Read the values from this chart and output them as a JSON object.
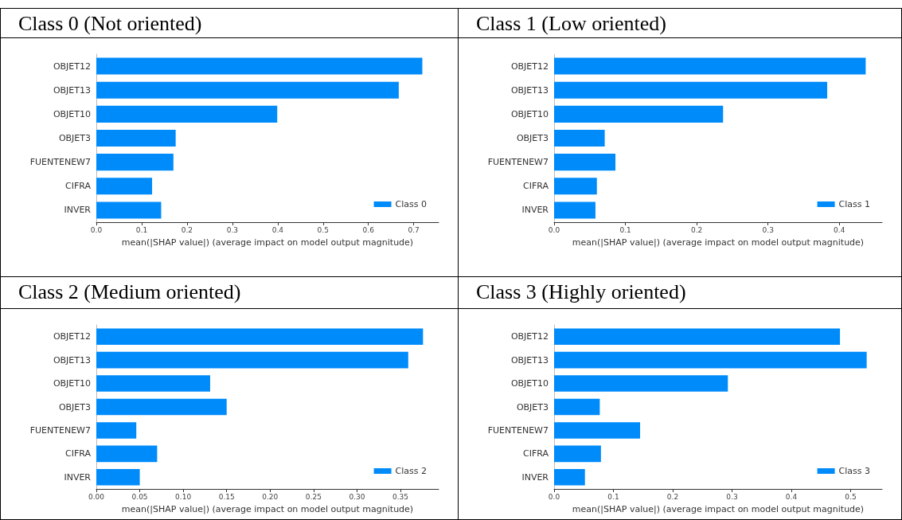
{
  "chart_data": [
    {
      "type": "bar",
      "orientation": "horizontal",
      "title": "Class 0 (Not oriented)",
      "xlabel": "mean(|SHAP value|) (average impact on model output magnitude)",
      "categories": [
        "OBJET12",
        "OBJET13",
        "OBJET10",
        "OBJET3",
        "FUENTENEW7",
        "CIFRA",
        "INVER"
      ],
      "series": [
        {
          "name": "Class 0",
          "color": "#008bfb",
          "values": [
            0.719,
            0.667,
            0.399,
            0.175,
            0.17,
            0.123,
            0.143
          ]
        }
      ],
      "xlim": [
        0,
        0.755
      ],
      "xticks": [
        {
          "value": 0,
          "label": "0.0"
        },
        0.1,
        0.2,
        0.3,
        0.4,
        0.5,
        0.6,
        0.7
      ],
      "legend": "bottom right",
      "grid": false
    },
    {
      "type": "bar",
      "orientation": "horizontal",
      "title": "Class 1 (Low oriented)",
      "xlabel": "mean(|SHAP value|) (average impact on model output magnitude)",
      "categories": [
        "OBJET12",
        "OBJET13",
        "OBJET10",
        "OBJET3",
        "FUENTENEW7",
        "CIFRA",
        "INVER"
      ],
      "series": [
        {
          "name": "Class 1",
          "color": "#008bfb",
          "values": [
            0.437,
            0.383,
            0.237,
            0.071,
            0.086,
            0.06,
            0.058
          ]
        }
      ],
      "xlim": [
        0,
        0.46
      ],
      "xticks": [
        {
          "value": 0,
          "label": "0.0"
        },
        0.1,
        0.2,
        0.3,
        0.4
      ],
      "legend": "bottom right",
      "grid": false
    },
    {
      "type": "bar",
      "orientation": "horizontal",
      "title": "Class 2 (Medium oriented)",
      "xlabel": "mean(|SHAP value|) (average impact on model output magnitude)",
      "categories": [
        "OBJET12",
        "OBJET13",
        "OBJET10",
        "OBJET3",
        "FUENTENEW7",
        "CIFRA",
        "INVER"
      ],
      "series": [
        {
          "name": "Class 2",
          "color": "#008bfb",
          "values": [
            0.376,
            0.359,
            0.131,
            0.15,
            0.046,
            0.07,
            0.05
          ]
        }
      ],
      "xlim": [
        0,
        0.394
      ],
      "xticks": [
        {
          "value": 0,
          "label": "0.00"
        },
        0.05,
        {
          "value": 0.1,
          "label": "0.10"
        },
        0.15,
        {
          "value": 0.2,
          "label": "0.20"
        },
        0.25,
        {
          "value": 0.3,
          "label": "0.30"
        },
        0.35
      ],
      "legend": "bottom right",
      "grid": false
    },
    {
      "type": "bar",
      "orientation": "horizontal",
      "title": "Class 3 (Highly oriented)",
      "xlabel": "mean(|SHAP value|) (average impact on model output magnitude)",
      "categories": [
        "OBJET12",
        "OBJET13",
        "OBJET10",
        "OBJET3",
        "FUENTENEW7",
        "CIFRA",
        "INVER"
      ],
      "series": [
        {
          "name": "Class 3",
          "color": "#008bfb",
          "values": [
            0.482,
            0.527,
            0.293,
            0.077,
            0.145,
            0.079,
            0.052
          ]
        }
      ],
      "xlim": [
        0,
        0.553
      ],
      "xticks": [
        {
          "value": 0,
          "label": "0.0"
        },
        0.1,
        0.2,
        0.3,
        0.4,
        0.5
      ],
      "legend": "bottom right",
      "grid": false
    }
  ]
}
